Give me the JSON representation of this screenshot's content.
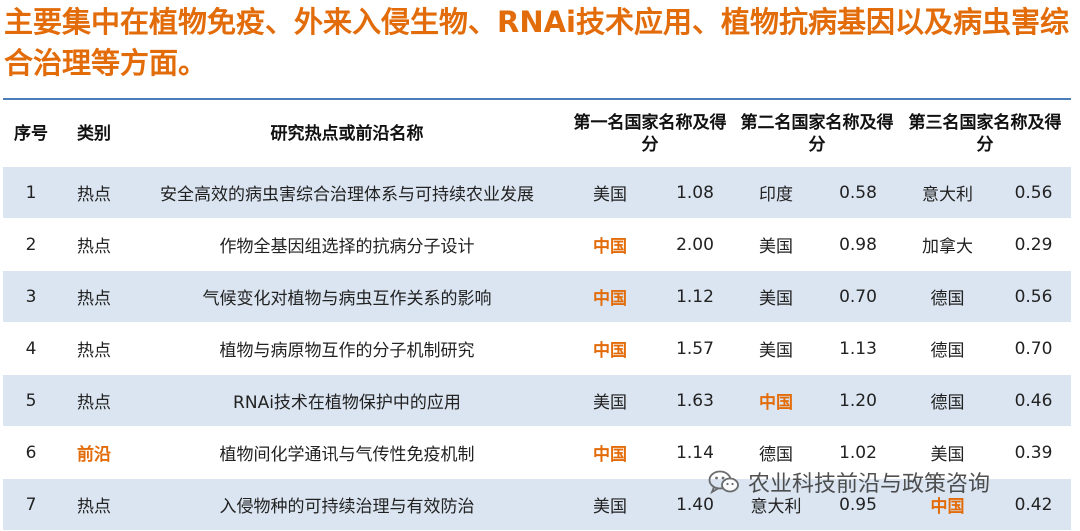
{
  "headline": "主要集中在植物免疫、外来入侵生物、RNAi技术应用、植物抗病基因以及病虫害综合治理等方面。",
  "table": {
    "headers": {
      "index": "序号",
      "category": "类别",
      "topic": "研究热点或前沿名称",
      "first": "第一名国家名称及得分",
      "second": "第二名国家名称及得分",
      "third": "第三名国家名称及得分"
    },
    "rows": [
      {
        "index": "1",
        "category": "热点",
        "topic": "安全高效的病虫害综合治理体系与可持续农业发展",
        "first_country": "美国",
        "first_score": "1.08",
        "second_country": "印度",
        "second_score": "0.58",
        "third_country": "意大利",
        "third_score": "0.56"
      },
      {
        "index": "2",
        "category": "热点",
        "topic": "作物全基因组选择的抗病分子设计",
        "first_country": "中国",
        "first_score": "2.00",
        "second_country": "美国",
        "second_score": "0.98",
        "third_country": "加拿大",
        "third_score": "0.29"
      },
      {
        "index": "3",
        "category": "热点",
        "topic": "气候变化对植物与病虫互作关系的影响",
        "first_country": "中国",
        "first_score": "1.12",
        "second_country": "美国",
        "second_score": "0.70",
        "third_country": "德国",
        "third_score": "0.56"
      },
      {
        "index": "4",
        "category": "热点",
        "topic": "植物与病原物互作的分子机制研究",
        "first_country": "中国",
        "first_score": "1.57",
        "second_country": "美国",
        "second_score": "1.13",
        "third_country": "德国",
        "third_score": "0.70"
      },
      {
        "index": "5",
        "category": "热点",
        "topic": "RNAi技术在植物保护中的应用",
        "first_country": "美国",
        "first_score": "1.63",
        "second_country": "中国",
        "second_score": "1.20",
        "third_country": "德国",
        "third_score": "0.46"
      },
      {
        "index": "6",
        "category": "前沿",
        "topic": "植物间化学通讯与气传性免疫机制",
        "first_country": "中国",
        "first_score": "1.14",
        "second_country": "德国",
        "second_score": "1.02",
        "third_country": "美国",
        "third_score": "0.39"
      },
      {
        "index": "7",
        "category": "热点",
        "topic": "入侵物种的可持续治理与有效防治",
        "first_country": "美国",
        "first_score": "1.40",
        "second_country": "意大利",
        "second_score": "0.95",
        "third_country": "中国",
        "third_score": "0.42"
      }
    ]
  },
  "watermark": {
    "text": "农业科技前沿与政策咨询",
    "icon": "wechat-icon"
  },
  "colors": {
    "accent": "#e36c0a",
    "row_band": "#dbe5f1",
    "rule": "#4a7ebb"
  }
}
